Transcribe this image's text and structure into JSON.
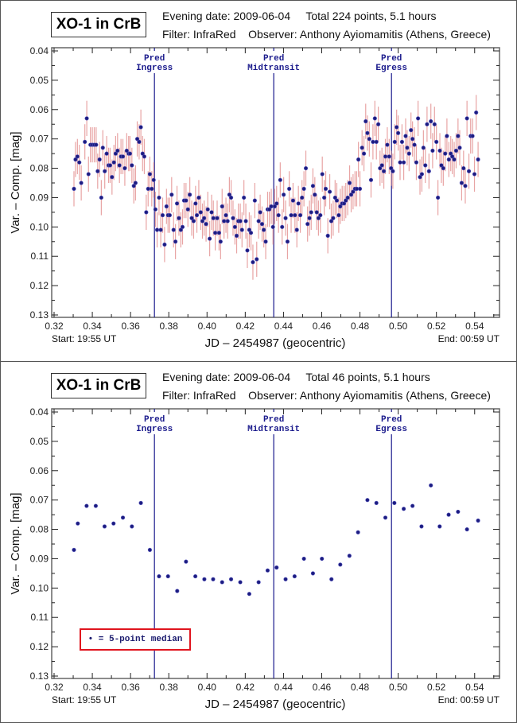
{
  "panels": [
    {
      "title": "XO-1 in CrB",
      "info_line1": "Evening date: 2009-06-04     Total 224 points, 5.1 hours",
      "info_line2": "Filter: InfraRed    Observer: Anthony Ayiomamitis (Athens, Greece)",
      "start_label": "Start: 19:55 UT",
      "end_label": "End: 00:59 UT"
    },
    {
      "title": "XO-1 in CrB",
      "info_line1": "Evening date: 2009-06-04     Total 46 points, 5.1 hours",
      "info_line2": "Filter: InfraRed    Observer: Anthony Ayiomamitis (Athens, Greece)",
      "start_label": "Start: 19:55 UT",
      "end_label": "End: 00:59 UT",
      "legend": "• = 5-point median"
    }
  ],
  "colors": {
    "point": "#1c1c80",
    "errorbar": "#e8a4a4",
    "pred_line": "#1a1a8c",
    "legend_border": "#e0141e"
  },
  "chart_data": [
    {
      "type": "scatter",
      "title": "XO-1 in CrB",
      "xlabel": "JD – 2454987  (geocentric)",
      "ylabel": "Var. – Comp. [mag]",
      "xlim": [
        0.32,
        0.553
      ],
      "ylim": [
        0.13,
        0.04
      ],
      "y_inverted": true,
      "xticks": [
        "0.32",
        "0.34",
        "0.36",
        "0.38",
        "0.40",
        "0.42",
        "0.44",
        "0.46",
        "0.48",
        "0.50",
        "0.52",
        "0.54"
      ],
      "yticks": [
        "0.04",
        "0.05",
        "0.06",
        "0.07",
        "0.08",
        "0.09",
        "0.10",
        "0.11",
        "0.12",
        "0.13"
      ],
      "error": 0.006,
      "annotations": [
        {
          "label_line1": "Pred",
          "label_line2": "Ingress",
          "x": 0.3725
        },
        {
          "label_line1": "Pred",
          "label_line2": "Midtransit",
          "x": 0.4349
        },
        {
          "label_line1": "Pred",
          "label_line2": "Egress",
          "x": 0.4965
        }
      ],
      "x": [
        0.3304,
        0.3312,
        0.3322,
        0.3332,
        0.3342,
        0.3361,
        0.3371,
        0.338,
        0.339,
        0.34,
        0.341,
        0.342,
        0.3428,
        0.3438,
        0.3447,
        0.3455,
        0.3465,
        0.3475,
        0.3485,
        0.3493,
        0.3503,
        0.3513,
        0.3522,
        0.3532,
        0.3542,
        0.355,
        0.356,
        0.357,
        0.358,
        0.359,
        0.3597,
        0.3607,
        0.3617,
        0.3626,
        0.3635,
        0.3645,
        0.3654,
        0.3663,
        0.3672,
        0.3682,
        0.3692,
        0.3701,
        0.3711,
        0.3721,
        0.373,
        0.3739,
        0.3749,
        0.3758,
        0.3768,
        0.3778,
        0.3788,
        0.3796,
        0.3805,
        0.3815,
        0.3825,
        0.3835,
        0.3843,
        0.3853,
        0.3863,
        0.3872,
        0.388,
        0.389,
        0.39,
        0.391,
        0.392,
        0.393,
        0.394,
        0.3947,
        0.3957,
        0.3967,
        0.3976,
        0.3985,
        0.3995,
        0.4004,
        0.4014,
        0.4024,
        0.4033,
        0.4043,
        0.4053,
        0.4063,
        0.4071,
        0.4079,
        0.4089,
        0.4099,
        0.4108,
        0.4117,
        0.4126,
        0.4136,
        0.4146,
        0.4155,
        0.4164,
        0.4174,
        0.4183,
        0.4193,
        0.4203,
        0.4211,
        0.4221,
        0.423,
        0.424,
        0.425,
        0.426,
        0.427,
        0.4278,
        0.4288,
        0.4297,
        0.4307,
        0.4317,
        0.4326,
        0.4336,
        0.4345,
        0.4354,
        0.4364,
        0.4374,
        0.4383,
        0.4393,
        0.4401,
        0.4411,
        0.4421,
        0.443,
        0.444,
        0.445,
        0.446,
        0.447,
        0.4478,
        0.4488,
        0.4497,
        0.4507,
        0.4517,
        0.4526,
        0.4536,
        0.4545,
        0.4554,
        0.4564,
        0.4574,
        0.4583,
        0.4593,
        0.4603,
        0.4613,
        0.4621,
        0.4632,
        0.4642,
        0.465,
        0.466,
        0.467,
        0.4679,
        0.4689,
        0.4697,
        0.4707,
        0.4717,
        0.4726,
        0.4736,
        0.4746,
        0.4754,
        0.4764,
        0.4774,
        0.4783,
        0.4792,
        0.48,
        0.4811,
        0.4821,
        0.483,
        0.4839,
        0.4849,
        0.4858,
        0.4868,
        0.4878,
        0.4886,
        0.4896,
        0.4905,
        0.4915,
        0.4925,
        0.4933,
        0.4943,
        0.4953,
        0.4963,
        0.4972,
        0.4982,
        0.4992,
        0.5,
        0.501,
        0.502,
        0.5029,
        0.5039,
        0.5047,
        0.5057,
        0.5067,
        0.5075,
        0.5085,
        0.5095,
        0.5104,
        0.5114,
        0.5124,
        0.5132,
        0.5142,
        0.5151,
        0.5161,
        0.5171,
        0.518,
        0.519,
        0.52,
        0.5208,
        0.5218,
        0.5226,
        0.5236,
        0.5246,
        0.5255,
        0.5265,
        0.5275,
        0.5283,
        0.5293,
        0.5303,
        0.5313,
        0.5322,
        0.5332,
        0.5342,
        0.5351,
        0.536,
        0.537,
        0.5379,
        0.5389,
        0.5399,
        0.5408,
        0.5418
      ],
      "y": [
        0.087,
        0.077,
        0.076,
        0.078,
        0.085,
        0.071,
        0.063,
        0.082,
        0.072,
        0.072,
        0.072,
        0.072,
        0.081,
        0.077,
        0.09,
        0.073,
        0.081,
        0.075,
        0.079,
        0.079,
        0.083,
        0.078,
        0.075,
        0.074,
        0.079,
        0.076,
        0.076,
        0.08,
        0.074,
        0.075,
        0.075,
        0.079,
        0.086,
        0.085,
        0.07,
        0.071,
        0.066,
        0.075,
        0.076,
        0.095,
        0.087,
        0.082,
        0.087,
        0.084,
        0.094,
        0.101,
        0.09,
        0.101,
        0.096,
        0.106,
        0.093,
        0.096,
        0.096,
        0.089,
        0.101,
        0.105,
        0.092,
        0.097,
        0.101,
        0.1,
        0.091,
        0.091,
        0.094,
        0.089,
        0.097,
        0.098,
        0.092,
        0.096,
        0.09,
        0.095,
        0.098,
        0.097,
        0.099,
        0.094,
        0.104,
        0.095,
        0.097,
        0.102,
        0.097,
        0.102,
        0.105,
        0.093,
        0.098,
        0.096,
        0.098,
        0.089,
        0.09,
        0.097,
        0.1,
        0.103,
        0.098,
        0.098,
        0.101,
        0.09,
        0.098,
        0.108,
        0.101,
        0.102,
        0.112,
        0.091,
        0.111,
        0.098,
        0.095,
        0.099,
        0.101,
        0.105,
        0.094,
        0.094,
        0.093,
        0.1,
        0.093,
        0.092,
        0.096,
        0.084,
        0.1,
        0.089,
        0.097,
        0.105,
        0.087,
        0.096,
        0.091,
        0.096,
        0.101,
        0.092,
        0.096,
        0.09,
        0.087,
        0.08,
        0.099,
        0.097,
        0.095,
        0.086,
        0.089,
        0.095,
        0.097,
        0.096,
        0.082,
        0.09,
        0.087,
        0.103,
        0.088,
        0.098,
        0.097,
        0.09,
        0.091,
        0.096,
        0.093,
        0.092,
        0.092,
        0.091,
        0.09,
        0.085,
        0.089,
        0.088,
        0.087,
        0.087,
        0.077,
        0.087,
        0.073,
        0.075,
        0.064,
        0.068,
        0.07,
        0.084,
        0.071,
        0.063,
        0.071,
        0.065,
        0.08,
        0.079,
        0.081,
        0.076,
        0.072,
        0.076,
        0.08,
        0.081,
        0.071,
        0.066,
        0.068,
        0.078,
        0.071,
        0.078,
        0.069,
        0.073,
        0.075,
        0.067,
        0.07,
        0.072,
        0.078,
        0.063,
        0.083,
        0.082,
        0.073,
        0.079,
        0.065,
        0.081,
        0.064,
        0.074,
        0.065,
        0.071,
        0.09,
        0.074,
        0.079,
        0.08,
        0.075,
        0.069,
        0.077,
        0.075,
        0.076,
        0.077,
        0.074,
        0.069,
        0.073,
        0.085,
        0.08,
        0.086,
        0.063,
        0.081,
        0.069,
        0.069,
        0.082,
        0.061,
        0.077
      ]
    },
    {
      "type": "scatter",
      "title": "XO-1 in CrB",
      "xlabel": "JD – 2454987  (geocentric)",
      "ylabel": "Var. – Comp. [mag]",
      "xlim": [
        0.32,
        0.553
      ],
      "ylim": [
        0.13,
        0.04
      ],
      "y_inverted": true,
      "xticks": [
        "0.32",
        "0.34",
        "0.36",
        "0.38",
        "0.40",
        "0.42",
        "0.44",
        "0.46",
        "0.48",
        "0.50",
        "0.52",
        "0.54"
      ],
      "yticks": [
        "0.04",
        "0.05",
        "0.06",
        "0.07",
        "0.08",
        "0.09",
        "0.10",
        "0.11",
        "0.12",
        "0.13"
      ],
      "legend": "5-point median",
      "annotations": [
        {
          "label_line1": "Pred",
          "label_line2": "Ingress",
          "x": 0.3725
        },
        {
          "label_line1": "Pred",
          "label_line2": "Midtransit",
          "x": 0.4349
        },
        {
          "label_line1": "Pred",
          "label_line2": "Egress",
          "x": 0.4965
        }
      ],
      "x": [
        0.3304,
        0.3324,
        0.337,
        0.3418,
        0.3464,
        0.3511,
        0.356,
        0.3607,
        0.3654,
        0.3701,
        0.3749,
        0.3796,
        0.3844,
        0.389,
        0.3939,
        0.3986,
        0.4032,
        0.4079,
        0.4126,
        0.4174,
        0.4221,
        0.427,
        0.4317,
        0.4364,
        0.4411,
        0.4458,
        0.4507,
        0.4554,
        0.4601,
        0.4651,
        0.4697,
        0.4745,
        0.479,
        0.4839,
        0.4886,
        0.4933,
        0.498,
        0.5029,
        0.5075,
        0.5122,
        0.5171,
        0.5217,
        0.5264,
        0.5313,
        0.536,
        0.5418
      ],
      "y": [
        0.087,
        0.078,
        0.072,
        0.072,
        0.079,
        0.078,
        0.076,
        0.079,
        0.071,
        0.087,
        0.096,
        0.096,
        0.101,
        0.091,
        0.096,
        0.097,
        0.097,
        0.098,
        0.097,
        0.098,
        0.102,
        0.098,
        0.094,
        0.093,
        0.097,
        0.096,
        0.09,
        0.095,
        0.09,
        0.097,
        0.092,
        0.089,
        0.081,
        0.07,
        0.071,
        0.076,
        0.071,
        0.073,
        0.072,
        0.079,
        0.065,
        0.079,
        0.075,
        0.074,
        0.08,
        0.077
      ]
    }
  ]
}
